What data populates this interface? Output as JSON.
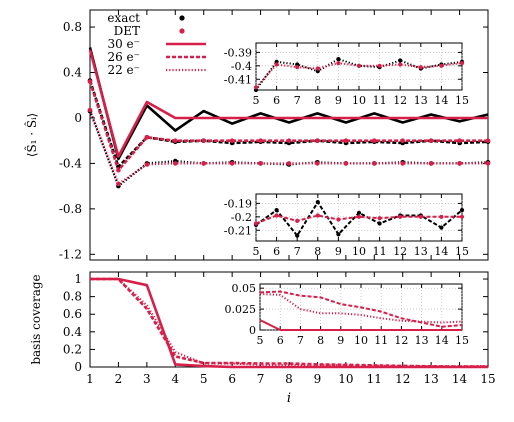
{
  "colors": {
    "exact": "#000000",
    "det": "#d6204a",
    "axis": "#000000",
    "grid": "#b0b0b0"
  },
  "chart_data": [
    {
      "id": "top",
      "type": "line",
      "ylabel": "⟨Ŝ₁ · Ŝᵢ⟩",
      "xlim": [
        1,
        15
      ],
      "ylim": [
        -1.25,
        0.95
      ],
      "yticks": [
        0.8,
        0.4,
        0,
        -0.4,
        -0.8,
        -1.2
      ],
      "ytick_labels": [
        "0.8",
        "0.4",
        "0",
        "-0.4",
        "-0.8",
        "-1.2"
      ],
      "legend": {
        "placement": "top-left",
        "entries": [
          {
            "label": "exact",
            "kind": "marker",
            "color": "#000000"
          },
          {
            "label": "DET",
            "kind": "marker",
            "color": "#d6204a"
          },
          {
            "label": "30 e⁻",
            "kind": "line",
            "style": "solid"
          },
          {
            "label": "26 e⁻",
            "kind": "line",
            "style": "dashed"
          },
          {
            "label": "22 e⁻",
            "kind": "line",
            "style": "dotted"
          }
        ]
      },
      "x": [
        1,
        2,
        3,
        4,
        5,
        6,
        7,
        8,
        9,
        10,
        11,
        12,
        13,
        14,
        15
      ],
      "series": [
        {
          "name": "30 e⁻",
          "method": "exact",
          "style": "solid",
          "markers": false,
          "values": [
            0.62,
            -0.36,
            0.11,
            -0.11,
            0.06,
            -0.05,
            0.04,
            -0.04,
            0.04,
            -0.04,
            0.04,
            -0.04,
            0.03,
            -0.03,
            0.03
          ]
        },
        {
          "name": "30 e⁻",
          "method": "DET",
          "style": "solid",
          "markers": false,
          "values": [
            0.6,
            -0.34,
            0.14,
            0.0,
            0.0,
            0.0,
            0.0,
            0.0,
            0.0,
            0.0,
            0.0,
            0.0,
            0.0,
            0.0,
            0.0
          ]
        },
        {
          "name": "26 e⁻",
          "method": "exact",
          "style": "dashed",
          "markers": true,
          "values": [
            0.33,
            -0.43,
            -0.17,
            -0.21,
            -0.2,
            -0.22,
            -0.21,
            -0.22,
            -0.2,
            -0.22,
            -0.21,
            -0.22,
            -0.2,
            -0.22,
            -0.21
          ]
        },
        {
          "name": "26 e⁻",
          "method": "DET",
          "style": "dashed",
          "markers": true,
          "values": [
            0.32,
            -0.46,
            -0.17,
            -0.2,
            -0.2,
            -0.2,
            -0.2,
            -0.2,
            -0.2,
            -0.2,
            -0.2,
            -0.2,
            -0.2,
            -0.2,
            -0.2
          ]
        },
        {
          "name": "22 e⁻",
          "method": "exact",
          "style": "dotted",
          "markers": true,
          "values": [
            0.06,
            -0.6,
            -0.4,
            -0.38,
            -0.4,
            -0.39,
            -0.4,
            -0.41,
            -0.39,
            -0.4,
            -0.4,
            -0.39,
            -0.4,
            -0.4,
            -0.39
          ]
        },
        {
          "name": "22 e⁻",
          "method": "DET",
          "style": "dotted",
          "markers": true,
          "values": [
            0.07,
            -0.58,
            -0.41,
            -0.4,
            -0.4,
            -0.4,
            -0.4,
            -0.4,
            -0.4,
            -0.4,
            -0.4,
            -0.4,
            -0.4,
            -0.4,
            -0.4
          ]
        }
      ]
    },
    {
      "id": "inset-top",
      "type": "line",
      "xlim": [
        5,
        15
      ],
      "ylim": [
        -0.418,
        -0.383
      ],
      "yticks": [
        -0.39,
        -0.4,
        -0.41
      ],
      "ytick_labels": [
        "-0.39",
        "-0.4",
        "-0.41"
      ],
      "xticks": [
        5,
        6,
        7,
        8,
        9,
        10,
        11,
        12,
        13,
        14,
        15
      ],
      "x": [
        5,
        6,
        7,
        8,
        9,
        10,
        11,
        12,
        13,
        14,
        15
      ],
      "series": [
        {
          "method": "exact",
          "style": "dotted",
          "markers": true,
          "values": [
            -0.418,
            -0.397,
            -0.399,
            -0.404,
            -0.395,
            -0.4,
            -0.401,
            -0.396,
            -0.402,
            -0.399,
            -0.397
          ]
        },
        {
          "method": "DET",
          "style": "dotted",
          "markers": true,
          "values": [
            -0.416,
            -0.399,
            -0.401,
            -0.402,
            -0.398,
            -0.4,
            -0.4,
            -0.399,
            -0.401,
            -0.4,
            -0.398
          ]
        }
      ]
    },
    {
      "id": "inset-mid",
      "type": "line",
      "xlim": [
        5,
        15
      ],
      "ylim": [
        -0.218,
        -0.183
      ],
      "yticks": [
        -0.19,
        -0.2,
        -0.21
      ],
      "ytick_labels": [
        "-0.19",
        "-0.2",
        "-0.21"
      ],
      "xticks": [
        5,
        6,
        7,
        8,
        9,
        10,
        11,
        12,
        13,
        14,
        15
      ],
      "x": [
        5,
        6,
        7,
        8,
        9,
        10,
        11,
        12,
        13,
        14,
        15
      ],
      "series": [
        {
          "method": "exact",
          "style": "dashed",
          "markers": true,
          "values": [
            -0.206,
            -0.195,
            -0.214,
            -0.189,
            -0.213,
            -0.197,
            -0.205,
            -0.199,
            -0.199,
            -0.208,
            -0.195
          ]
        },
        {
          "method": "DET",
          "style": "dashed",
          "markers": true,
          "values": [
            -0.205,
            -0.199,
            -0.203,
            -0.199,
            -0.202,
            -0.2,
            -0.201,
            -0.2,
            -0.2,
            -0.2,
            -0.2
          ]
        }
      ]
    },
    {
      "id": "bottom",
      "type": "line",
      "ylabel": "basis coverage",
      "xlabel": "i",
      "xlim": [
        1,
        15
      ],
      "ylim": [
        0,
        1.08
      ],
      "yticks": [
        0,
        0.2,
        0.4,
        0.6,
        0.8,
        1
      ],
      "ytick_labels": [
        "0",
        "0.2",
        "0.4",
        "0.6",
        "0.8",
        "1"
      ],
      "xticks": [
        1,
        2,
        3,
        4,
        5,
        6,
        7,
        8,
        9,
        10,
        11,
        12,
        13,
        14,
        15
      ],
      "x": [
        1,
        2,
        3,
        4,
        5,
        6,
        7,
        8,
        9,
        10,
        11,
        12,
        13,
        14,
        15
      ],
      "series": [
        {
          "name": "30 e⁻",
          "style": "solid",
          "values": [
            1.0,
            1.0,
            0.93,
            0.03,
            0.01,
            0.0,
            0.0,
            0.0,
            0.0,
            0.0,
            0.0,
            0.0,
            0.0,
            0.0,
            0.0
          ]
        },
        {
          "name": "26 e⁻",
          "style": "dashed",
          "values": [
            1.0,
            1.0,
            0.66,
            0.12,
            0.045,
            0.045,
            0.04,
            0.04,
            0.03,
            0.025,
            0.018,
            0.012,
            0.008,
            0.004,
            0.006
          ]
        },
        {
          "name": "22 e⁻",
          "style": "dotted",
          "values": [
            1.0,
            1.0,
            0.7,
            0.17,
            0.04,
            0.04,
            0.025,
            0.02,
            0.02,
            0.018,
            0.014,
            0.01,
            0.009,
            0.008,
            0.01
          ]
        }
      ]
    },
    {
      "id": "inset-bottom",
      "type": "line",
      "xlim": [
        5,
        15
      ],
      "ylim": [
        0,
        0.055
      ],
      "yticks": [
        0,
        0.025,
        0.05
      ],
      "ytick_labels": [
        "0",
        "0.025",
        "0.05"
      ],
      "xticks": [
        5,
        6,
        7,
        8,
        9,
        10,
        11,
        12,
        13,
        14,
        15
      ],
      "x": [
        5,
        6,
        7,
        8,
        9,
        10,
        11,
        12,
        13,
        14,
        15
      ],
      "series": [
        {
          "name": "30 e⁻",
          "style": "solid",
          "values": [
            0.012,
            0.0,
            0.0,
            0.0,
            0.0,
            0.0,
            0.0,
            0.0,
            0.0,
            0.0,
            0.0
          ]
        },
        {
          "name": "26 e⁻",
          "style": "dashed",
          "values": [
            0.045,
            0.046,
            0.041,
            0.039,
            0.031,
            0.027,
            0.022,
            0.014,
            0.009,
            0.004,
            0.006
          ]
        },
        {
          "name": "22 e⁻",
          "style": "dotted",
          "values": [
            0.043,
            0.042,
            0.025,
            0.02,
            0.02,
            0.018,
            0.014,
            0.011,
            0.01,
            0.009,
            0.01
          ]
        }
      ]
    }
  ]
}
